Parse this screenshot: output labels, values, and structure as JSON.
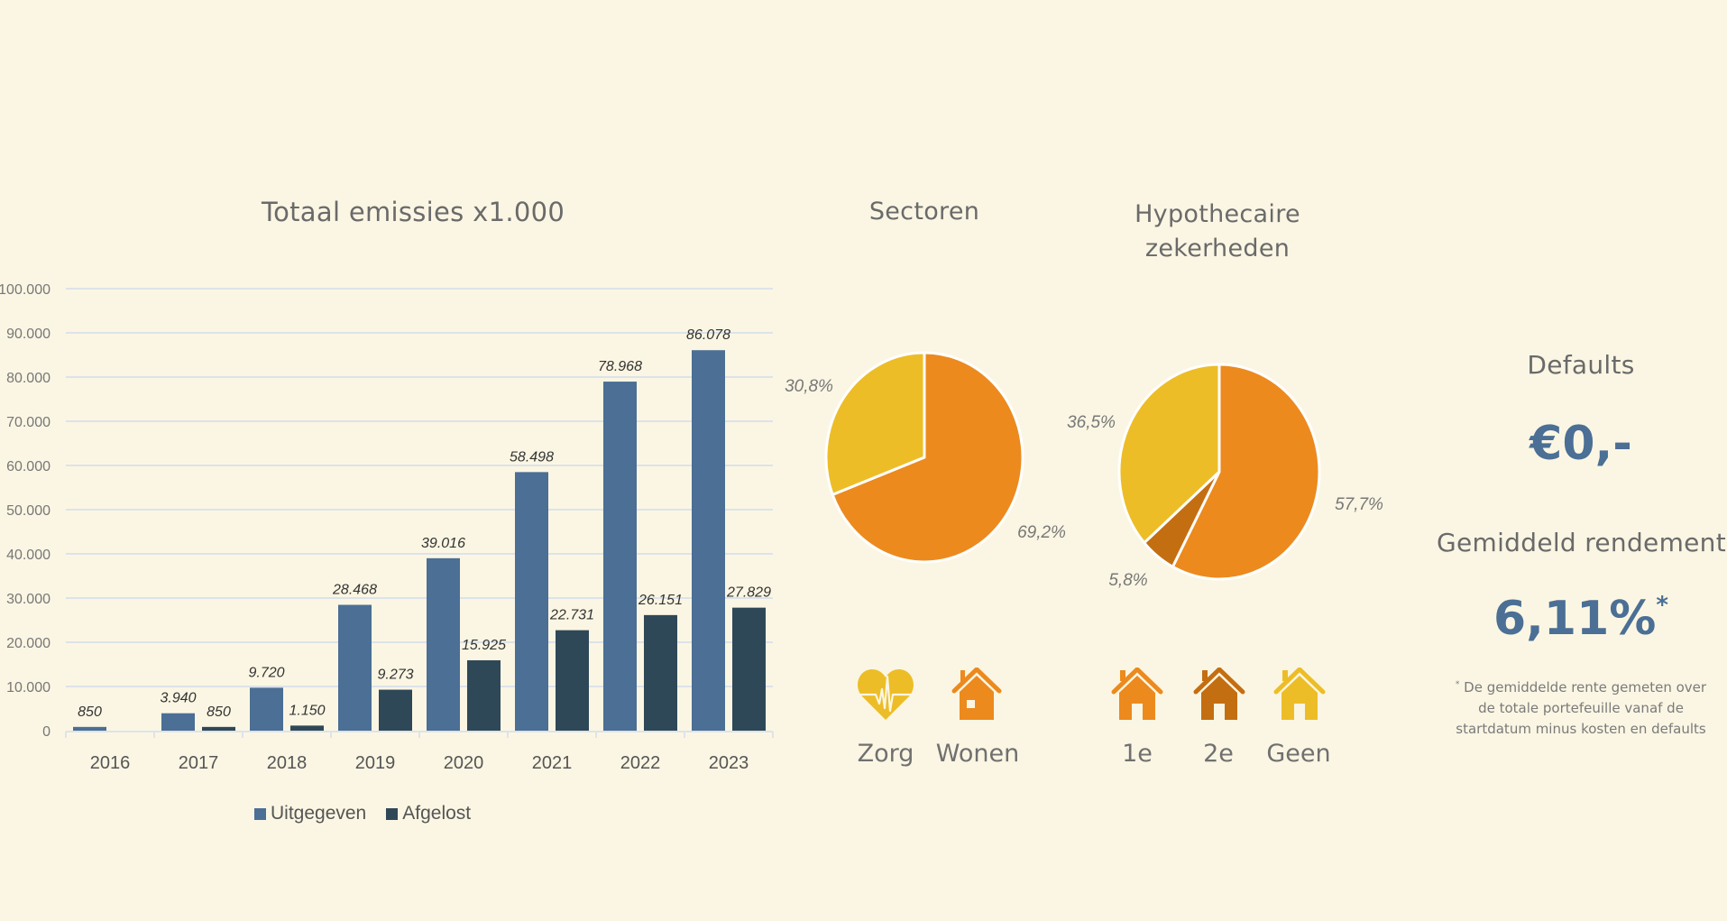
{
  "colors": {
    "background": "#FBF6E3",
    "uitgegeven": "#4B6F95",
    "afgelost": "#2F4858",
    "orange": "#EC8A1E",
    "yellow": "#EDBD27",
    "dark_orange": "#C46E12",
    "accent_value": "#4B6F95"
  },
  "chart_data": [
    {
      "type": "bar",
      "title": "Totaal emissies x1.000",
      "xlabel": "",
      "ylabel": "",
      "categories": [
        "2016",
        "2017",
        "2018",
        "2019",
        "2020",
        "2021",
        "2022",
        "2023"
      ],
      "series": [
        {
          "name": "Uitgegeven",
          "values": [
            850,
            3940,
            9720,
            28468,
            39016,
            58498,
            78968,
            86078
          ],
          "labels": [
            "850",
            "3.940",
            "9.720",
            "28.468",
            "39.016",
            "58.498",
            "78.968",
            "86.078"
          ]
        },
        {
          "name": "Afgelost",
          "values": [
            0,
            850,
            1150,
            9273,
            15925,
            22731,
            26151,
            27829
          ],
          "labels": [
            "",
            "850",
            "1.150",
            "9.273",
            "15.925",
            "22.731",
            "26.151",
            "27.829"
          ]
        }
      ],
      "ylim": [
        0,
        100000
      ],
      "yticks": [
        0,
        10000,
        20000,
        30000,
        40000,
        50000,
        60000,
        70000,
        80000,
        90000,
        100000
      ],
      "ytick_labels": [
        "0",
        "10.000",
        "20.000",
        "30.000",
        "40.000",
        "50.000",
        "60.000",
        "70.000",
        "80.000",
        "90.000",
        "100.000"
      ],
      "grid": true,
      "legend": "bottom"
    },
    {
      "type": "pie",
      "title": "Sectoren",
      "slices": [
        {
          "name": "Wonen",
          "value": 69.2,
          "label": "69,2%",
          "color": "#EC8A1E"
        },
        {
          "name": "Zorg",
          "value": 30.8,
          "label": "30,8%",
          "color": "#EDBD27"
        }
      ]
    },
    {
      "type": "pie",
      "title": "Hypothecaire zekerheden",
      "slices": [
        {
          "name": "1e",
          "value": 57.7,
          "label": "57,7%",
          "color": "#EC8A1E"
        },
        {
          "name": "2e",
          "value": 5.8,
          "label": "5,8%",
          "color": "#C46E12"
        },
        {
          "name": "Geen",
          "value": 36.5,
          "label": "36,5%",
          "color": "#EDBD27"
        }
      ]
    }
  ],
  "titles": {
    "emissies": "Totaal emissies x1.000",
    "sectoren": "Sectoren",
    "hypo_line1": "Hypothecaire",
    "hypo_line2": "zekerheden"
  },
  "legend": {
    "uitgegeven": "Uitgegeven",
    "afgelost": "Afgelost"
  },
  "sector_icons": [
    {
      "icon": "heart-pulse-icon",
      "label": "Zorg",
      "color": "#EDBD27"
    },
    {
      "icon": "house-icon",
      "label": "Wonen",
      "color": "#EC8A1E"
    }
  ],
  "hypo_icons": [
    {
      "icon": "house-icon",
      "label": "1e",
      "color": "#EC8A1E"
    },
    {
      "icon": "house-icon",
      "label": "2e",
      "color": "#C46E12"
    },
    {
      "icon": "house-icon",
      "label": "Geen",
      "color": "#EDBD27"
    }
  ],
  "stats": {
    "defaults_label": "Defaults",
    "defaults_value": "€0,-",
    "rendement_label": "Gemiddeld rendement",
    "rendement_value": "6,11%",
    "rendement_marker": "*",
    "footnote_marker": "*",
    "footnote_line1": "De gemiddelde rente gemeten over",
    "footnote_line2": "de totale portefeuille vanaf de",
    "footnote_line3": "startdatum minus kosten en defaults"
  }
}
